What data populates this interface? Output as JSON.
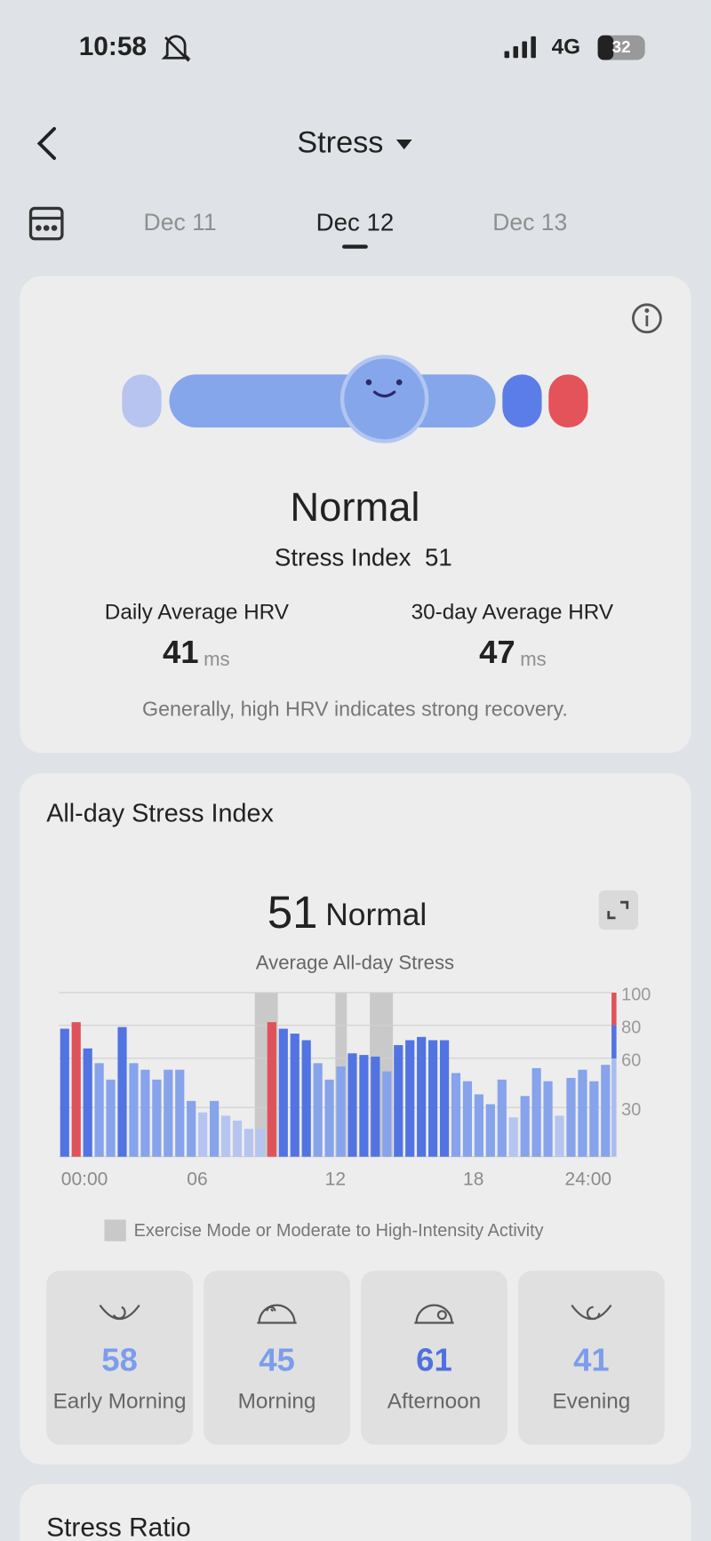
{
  "status_bar": {
    "time": "10:58",
    "network": "4G",
    "battery": "32"
  },
  "header": {
    "title": "Stress"
  },
  "dates": [
    "Dec 11",
    "Dec 12",
    "Dec 13"
  ],
  "summary": {
    "level": "Normal",
    "stress_index_label": "Stress Index",
    "stress_index": 51,
    "daily_hrv_label": "Daily Average HRV",
    "daily_hrv": 41,
    "daily_hrv_unit": "ms",
    "avg30_hrv_label": "30-day Average HRV",
    "avg30_hrv": 47,
    "avg30_hrv_unit": "ms",
    "note": "Generally, high HRV indicates strong recovery."
  },
  "chart_data": {
    "type": "histogram",
    "title": "All-day Stress Index",
    "average": 51,
    "average_level": "Normal",
    "subtitle": "Average All-day Stress",
    "bins": [
      0,
      0.5,
      1,
      1.5,
      2,
      2.5,
      3,
      3.5,
      4,
      4.5,
      5,
      5.5,
      6,
      6.5,
      7,
      7.5,
      8,
      8.5,
      9,
      9.5,
      10,
      10.5,
      11,
      11.5,
      12,
      12.5,
      13,
      13.5,
      14,
      14.5,
      15,
      15.5,
      16,
      16.5,
      17,
      17.5,
      18,
      18.5,
      19,
      19.5,
      20,
      20.5,
      21,
      21.5,
      22,
      22.5,
      23,
      23.5,
      24
    ],
    "values": [
      78,
      82,
      66,
      57,
      47,
      79,
      57,
      53,
      47,
      53,
      53,
      34,
      27,
      34,
      25,
      22,
      17,
      17,
      82,
      78,
      75,
      71,
      57,
      47,
      55,
      63,
      62,
      61,
      52,
      68,
      71,
      73,
      71,
      71,
      51,
      46,
      38,
      32,
      47,
      24,
      37,
      54,
      46,
      25,
      48,
      53,
      46,
      56
    ],
    "colors": [
      "#5273e2",
      "#e0525a",
      "#5273e2",
      "#86a3eb",
      "#86a3eb",
      "#5273e2",
      "#86a3eb",
      "#86a3eb",
      "#86a3eb",
      "#86a3eb",
      "#86a3eb",
      "#86a3eb",
      "#b6c4f0",
      "#86a3eb",
      "#b6c4f0",
      "#b6c4f0",
      "#b6c4f0",
      "#b6c4f0",
      "#e0525a",
      "#5273e2",
      "#5273e2",
      "#5273e2",
      "#86a3eb",
      "#86a3eb",
      "#86a3eb",
      "#5273e2",
      "#5273e2",
      "#5273e2",
      "#86a3eb",
      "#5273e2",
      "#5273e2",
      "#5273e2",
      "#5273e2",
      "#5273e2",
      "#86a3eb",
      "#86a3eb",
      "#86a3eb",
      "#86a3eb",
      "#86a3eb",
      "#b6c4f0",
      "#86a3eb",
      "#86a3eb",
      "#86a3eb",
      "#b6c4f0",
      "#86a3eb",
      "#86a3eb",
      "#86a3eb",
      "#86a3eb"
    ],
    "xlim": [
      0,
      24
    ],
    "xticks": [
      {
        "value": 0,
        "label": "00:00"
      },
      {
        "value": 6,
        "label": "06"
      },
      12,
      18,
      {
        "value": 24,
        "label": "24:00"
      }
    ],
    "ylim": [
      0,
      100
    ],
    "yticks": [
      30,
      60,
      80,
      100
    ],
    "grid": true,
    "exercise_periods": [
      [
        8.5,
        9.5
      ],
      [
        12,
        12.5
      ],
      [
        13.5,
        14.5
      ]
    ],
    "exercise_color": "#c9c9c9",
    "legend": "Exercise Mode or Moderate to High-Intensity Activity"
  },
  "periods": [
    {
      "value": 58,
      "label": "Early Morning",
      "color": "#7b9deb"
    },
    {
      "value": 45,
      "label": "Morning",
      "color": "#7b9deb"
    },
    {
      "value": 61,
      "label": "Afternoon",
      "color": "#4f70e0"
    },
    {
      "value": 41,
      "label": "Evening",
      "color": "#7b9deb"
    }
  ],
  "next_section": {
    "title": "Stress Ratio"
  }
}
